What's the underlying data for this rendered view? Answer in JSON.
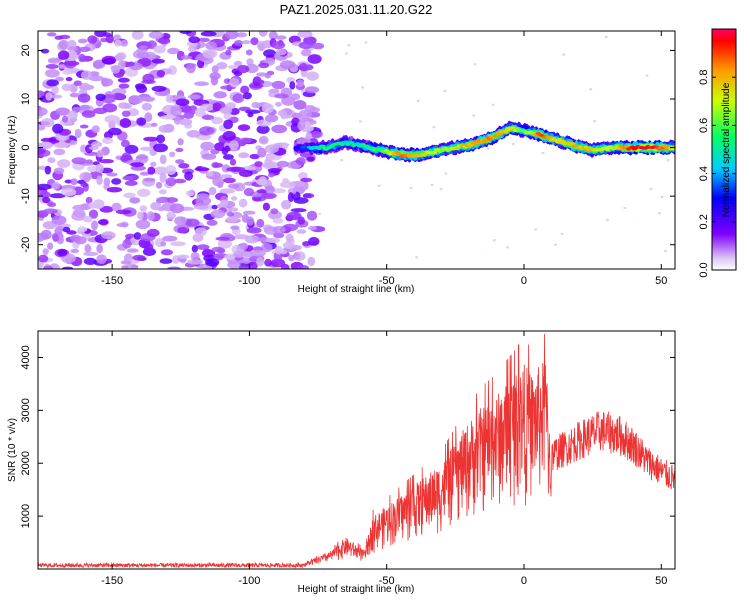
{
  "chart_data": [
    {
      "type": "heatmap",
      "title": "PAZ1.2025.031.11.20.G22",
      "xlabel": "Height of straight line (km)",
      "ylabel": "Frequency (Hz)",
      "xlim": [
        -177,
        55
      ],
      "ylim": [
        -25,
        24
      ],
      "x_ticks": [
        -150,
        -100,
        -50,
        0,
        50
      ],
      "y_ticks": [
        -20,
        -10,
        0,
        10,
        20
      ],
      "colorbar": {
        "label": "Normalized spectral amplitude",
        "range": [
          0,
          1
        ],
        "ticks": [
          0.0,
          0.2,
          0.4,
          0.6,
          0.8
        ]
      },
      "noise_region_x": [
        -177,
        -75
      ],
      "ridge": [
        {
          "x": -83,
          "y": 0.0,
          "amp": 0.25
        },
        {
          "x": -72,
          "y": 0.0,
          "amp": 0.55
        },
        {
          "x": -65,
          "y": 1.0,
          "amp": 0.5
        },
        {
          "x": -60,
          "y": 0.5,
          "amp": 0.5
        },
        {
          "x": -52,
          "y": -0.5,
          "amp": 0.6
        },
        {
          "x": -45,
          "y": -1.5,
          "amp": 0.85
        },
        {
          "x": -38,
          "y": -1.5,
          "amp": 0.8
        },
        {
          "x": -30,
          "y": -0.5,
          "amp": 0.65
        },
        {
          "x": -20,
          "y": 0.5,
          "amp": 0.8
        },
        {
          "x": -12,
          "y": 2.0,
          "amp": 0.85
        },
        {
          "x": -5,
          "y": 4.0,
          "amp": 0.75
        },
        {
          "x": 0,
          "y": 3.5,
          "amp": 0.6
        },
        {
          "x": 6,
          "y": 2.5,
          "amp": 0.9
        },
        {
          "x": 12,
          "y": 1.5,
          "amp": 0.7
        },
        {
          "x": 18,
          "y": 0.5,
          "amp": 0.8
        },
        {
          "x": 25,
          "y": -0.5,
          "amp": 0.75
        },
        {
          "x": 32,
          "y": 0.0,
          "amp": 0.7
        },
        {
          "x": 40,
          "y": 0.0,
          "amp": 0.95
        },
        {
          "x": 48,
          "y": 0.0,
          "amp": 0.95
        },
        {
          "x": 55,
          "y": 0.0,
          "amp": 0.7
        }
      ]
    },
    {
      "type": "line",
      "title": "",
      "xlabel": "Height of straight line (km)",
      "ylabel": "SNR (10 * v/v)",
      "xlim": [
        -177,
        55
      ],
      "ylim": [
        0,
        4500
      ],
      "x_ticks": [
        -150,
        -100,
        -50,
        0,
        50
      ],
      "y_ticks": [
        1000,
        2000,
        3000,
        4000
      ],
      "color": "#ee3333",
      "envelope": [
        {
          "x": -177,
          "y": 110
        },
        {
          "x": -80,
          "y": 110
        },
        {
          "x": -70,
          "y": 350
        },
        {
          "x": -65,
          "y": 600
        },
        {
          "x": -58,
          "y": 350
        },
        {
          "x": -55,
          "y": 1000
        },
        {
          "x": -50,
          "y": 1200
        },
        {
          "x": -45,
          "y": 1400
        },
        {
          "x": -35,
          "y": 1800
        },
        {
          "x": -30,
          "y": 2000
        },
        {
          "x": -25,
          "y": 2400
        },
        {
          "x": -20,
          "y": 2800
        },
        {
          "x": -15,
          "y": 3100
        },
        {
          "x": -10,
          "y": 3300
        },
        {
          "x": -5,
          "y": 3600
        },
        {
          "x": 0,
          "y": 3900
        },
        {
          "x": 3,
          "y": 3700
        },
        {
          "x": 8,
          "y": 4000
        },
        {
          "x": 10,
          "y": 2200
        },
        {
          "x": 15,
          "y": 2350
        },
        {
          "x": 20,
          "y": 2500
        },
        {
          "x": 28,
          "y": 2700
        },
        {
          "x": 35,
          "y": 2600
        },
        {
          "x": 40,
          "y": 2400
        },
        {
          "x": 45,
          "y": 2100
        },
        {
          "x": 50,
          "y": 1900
        },
        {
          "x": 55,
          "y": 1750
        }
      ]
    }
  ]
}
